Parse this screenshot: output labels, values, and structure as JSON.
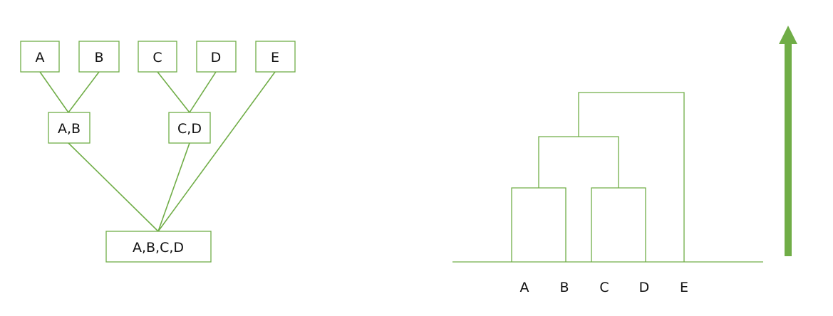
{
  "tree": {
    "leaves": [
      {
        "id": "a",
        "label": "A"
      },
      {
        "id": "b",
        "label": "B"
      },
      {
        "id": "c",
        "label": "C"
      },
      {
        "id": "d",
        "label": "D"
      },
      {
        "id": "e",
        "label": "E"
      }
    ],
    "merges": [
      {
        "id": "ab",
        "label": "A,B"
      },
      {
        "id": "cd",
        "label": "C,D"
      },
      {
        "id": "abcd",
        "label": "A,B,C,D"
      }
    ]
  },
  "dendrogram": {
    "leaf_labels": [
      "A",
      "B",
      "C",
      "D",
      "E"
    ],
    "merges": [
      {
        "left": "A",
        "right": "B",
        "level": 1
      },
      {
        "left": "C",
        "right": "D",
        "level": 1
      },
      {
        "left": "AB",
        "right": "CD",
        "level": 2
      },
      {
        "left": "ABCD",
        "right": "E",
        "level": 3
      }
    ]
  },
  "colors": {
    "line": "#70ad47",
    "arrow": "#70ad47",
    "text": "#111111"
  },
  "icons": {
    "arrow": "up-arrow-icon"
  }
}
